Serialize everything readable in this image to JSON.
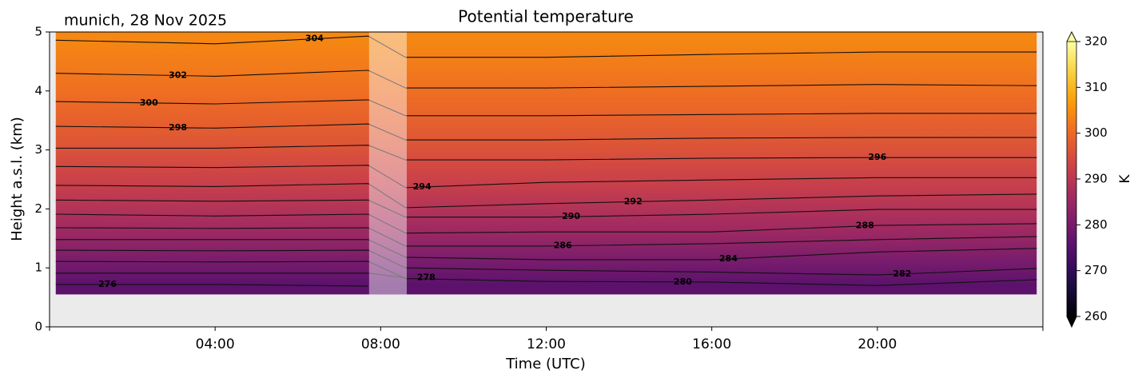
{
  "chart_data": {
    "type": "contour",
    "title": "Potential temperature",
    "subtitle": "munich, 28 Nov 2025",
    "x_label": "Time (UTC)",
    "y_label": "Height a.s.l. (km)",
    "xlim": [
      0,
      24
    ],
    "xticks": [
      {
        "value": 4,
        "label": "04:00"
      },
      {
        "value": 8,
        "label": "08:00"
      },
      {
        "value": 12,
        "label": "12:00"
      },
      {
        "value": 16,
        "label": "16:00"
      },
      {
        "value": 20,
        "label": "20:00"
      }
    ],
    "ylim": [
      0,
      5
    ],
    "yticks": [
      0,
      1,
      2,
      3,
      4,
      5
    ],
    "field_xlim": [
      0.15,
      23.85
    ],
    "field_ylim": [
      0.55,
      5
    ],
    "gap": [
      7.72,
      8.63
    ],
    "colormap": "inferno",
    "clim": [
      260,
      320
    ],
    "cticks": [
      260,
      270,
      280,
      290,
      300,
      310,
      320
    ],
    "colorbar_label": "K",
    "contour_times": [
      0.15,
      4,
      7.7,
      8.6,
      12,
      16,
      20,
      23.85
    ],
    "contours": [
      {
        "level": 276,
        "heights": [
          0.72,
          0.72,
          0.69,
          null,
          null,
          null,
          null,
          null
        ]
      },
      {
        "level": 278,
        "heights": [
          0.91,
          0.91,
          0.91,
          0.83,
          null,
          null,
          null,
          null
        ]
      },
      {
        "level": 280,
        "heights": [
          1.11,
          1.1,
          1.11,
          0.82,
          0.77,
          0.76,
          0.7,
          0.8
        ]
      },
      {
        "level": 282,
        "heights": [
          1.3,
          1.29,
          1.3,
          1.0,
          0.96,
          0.93,
          0.88,
          0.99
        ]
      },
      {
        "level": 284,
        "heights": [
          1.48,
          1.48,
          1.48,
          1.18,
          1.14,
          1.14,
          1.27,
          1.33
        ]
      },
      {
        "level": 286,
        "heights": [
          1.68,
          1.67,
          1.68,
          1.37,
          1.37,
          1.41,
          1.48,
          1.53
        ]
      },
      {
        "level": 288,
        "heights": [
          1.91,
          1.88,
          1.91,
          1.59,
          1.61,
          1.61,
          1.72,
          1.75
        ]
      },
      {
        "level": 290,
        "heights": [
          2.15,
          2.13,
          2.15,
          1.86,
          1.86,
          1.91,
          1.99,
          1.99
        ]
      },
      {
        "level": 292,
        "heights": [
          2.4,
          2.38,
          2.43,
          2.02,
          2.09,
          2.15,
          2.22,
          2.25
        ]
      },
      {
        "level": 294,
        "heights": [
          2.72,
          2.7,
          2.74,
          2.36,
          2.45,
          2.49,
          2.53,
          2.53
        ]
      },
      {
        "level": 296,
        "heights": [
          3.03,
          3.03,
          3.08,
          2.83,
          2.83,
          2.86,
          2.87,
          2.87
        ]
      },
      {
        "level": 298,
        "heights": [
          3.4,
          3.37,
          3.44,
          3.17,
          3.17,
          3.2,
          3.21,
          3.21
        ]
      },
      {
        "level": 300,
        "heights": [
          3.82,
          3.78,
          3.85,
          3.58,
          3.58,
          3.6,
          3.62,
          3.62
        ]
      },
      {
        "level": 302,
        "heights": [
          4.3,
          4.25,
          4.35,
          4.05,
          4.05,
          4.08,
          4.11,
          4.09
        ]
      },
      {
        "level": 304,
        "heights": [
          4.86,
          4.8,
          4.93,
          4.57,
          4.57,
          4.62,
          4.66,
          4.66
        ]
      }
    ]
  }
}
